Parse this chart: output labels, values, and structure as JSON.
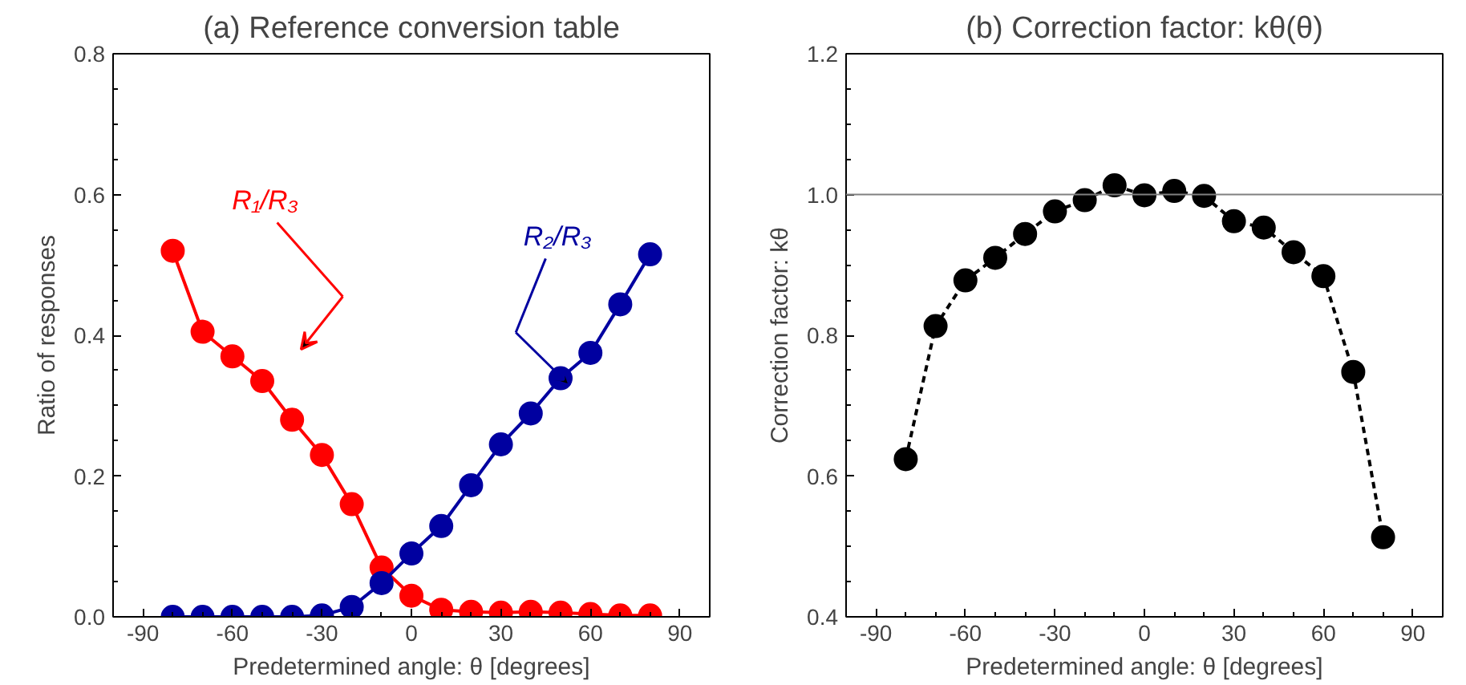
{
  "chart_data": [
    {
      "type": "line",
      "title": "(a) Reference conversion table",
      "xlabel": "Predetermined angle: θ [degrees]",
      "ylabel": "Ratio of responses",
      "x": [
        -80,
        -70,
        -60,
        -50,
        -40,
        -30,
        -20,
        -10,
        0,
        10,
        20,
        30,
        40,
        50,
        60,
        70,
        80
      ],
      "series": [
        {
          "name": "R₁/R₃",
          "color": "#ff0000",
          "values": [
            0.52,
            0.405,
            0.37,
            0.335,
            0.28,
            0.23,
            0.16,
            0.07,
            0.03,
            0.01,
            0.007,
            0.006,
            0.007,
            0.006,
            0.004,
            0.002,
            0.002
          ]
        },
        {
          "name": "R₂/R₃",
          "color": "#0000a0",
          "values": [
            0.0,
            0.0,
            0.0,
            0.0,
            0.0,
            0.002,
            0.014,
            0.048,
            0.09,
            0.129,
            0.187,
            0.245,
            0.289,
            0.339,
            0.375,
            0.444,
            0.515
          ]
        }
      ],
      "xlim": [
        -100,
        100
      ],
      "xticks": [
        -90,
        -60,
        -30,
        0,
        30,
        60,
        90
      ],
      "ylim": [
        0,
        0.8
      ],
      "yticks": [
        {
          "value": 0,
          "label": "0.0"
        },
        0.2,
        0.4,
        0.6,
        0.8
      ],
      "grid": false,
      "legend": false,
      "marker": "circle",
      "line_style": "solid"
    },
    {
      "type": "line",
      "title": "(b) Correction factor: kθ(θ)",
      "xlabel": "Predetermined angle: θ [degrees]",
      "ylabel": "Correction factor: kθ",
      "x": [
        -80,
        -70,
        -60,
        -50,
        -40,
        -30,
        -20,
        -10,
        0,
        10,
        20,
        30,
        40,
        50,
        60,
        70,
        80
      ],
      "series": [
        {
          "color": "#000000",
          "values": [
            0.624,
            0.813,
            0.878,
            0.91,
            0.944,
            0.976,
            0.992,
            1.013,
            0.999,
            1.005,
            0.998,
            0.962,
            0.953,
            0.918,
            0.884,
            0.748,
            0.513
          ]
        }
      ],
      "ref_lines": [
        {
          "axis": "y",
          "value": 1.0,
          "color": "#808080"
        }
      ],
      "xlim": [
        -100,
        100
      ],
      "xticks": [
        -90,
        -60,
        -30,
        0,
        30,
        60,
        90
      ],
      "ylim": [
        0.4,
        1.2
      ],
      "yticks": [
        0.4,
        0.6,
        0.8,
        {
          "value": 1,
          "label": "1.0"
        },
        1.2
      ],
      "grid": false,
      "legend": false,
      "marker": "circle",
      "line_style": "dashed"
    }
  ]
}
